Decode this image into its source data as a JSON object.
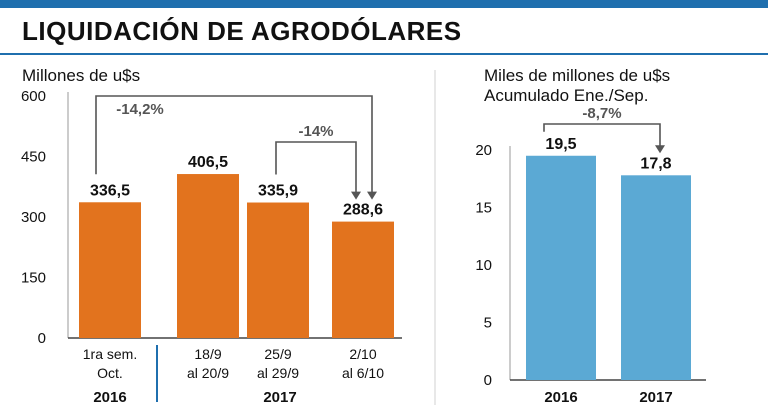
{
  "title": "LIQUIDACIÓN DE AGRODÓLARES",
  "chart_data": [
    {
      "type": "bar",
      "ylabel": "Millones de u$s",
      "ylim": [
        0,
        600
      ],
      "yticks": [
        "600",
        "450",
        "300",
        "150",
        "0"
      ],
      "categories": [
        {
          "line1": "1ra sem.",
          "line2": "Oct."
        },
        {
          "line1": "18/9",
          "line2": "al 20/9"
        },
        {
          "line1": "25/9",
          "line2": "al 29/9"
        },
        {
          "line1": "2/10",
          "line2": "al 6/10"
        }
      ],
      "values": [
        336.5,
        406.5,
        335.9,
        288.6
      ],
      "value_labels": [
        "336,5",
        "406,5",
        "335,9",
        "288,6"
      ],
      "group_labels": [
        "2016",
        "2017"
      ],
      "annotations": [
        "-14,2%",
        "-14%"
      ],
      "bar_color": "#e2731e"
    },
    {
      "type": "bar",
      "ylabel": "Miles de millones de u$s",
      "subtitle": "Acumulado Ene./Sep.",
      "ylim": [
        0,
        20
      ],
      "yticks": [
        "20",
        "15",
        "10",
        "5",
        "0"
      ],
      "categories": [
        "2016",
        "2017"
      ],
      "values": [
        19.5,
        17.8
      ],
      "value_labels": [
        "19,5",
        "17,8"
      ],
      "annotations": [
        "-8,7%"
      ],
      "bar_color": "#5ba9d4"
    }
  ]
}
